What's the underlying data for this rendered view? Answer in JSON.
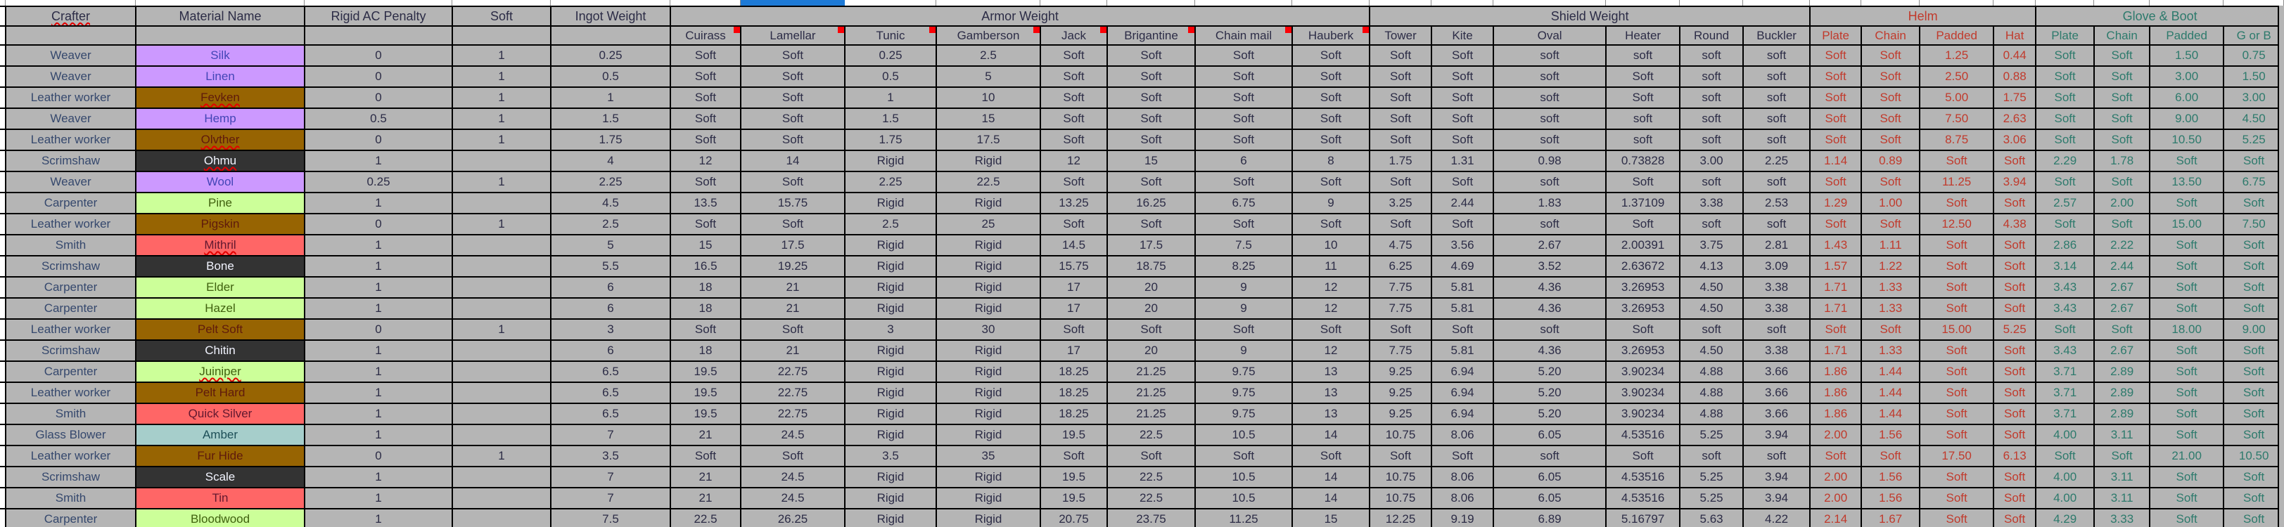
{
  "sheet": {
    "header_row1": [
      {
        "label": "Crafter",
        "span": 1,
        "misspelled": true
      },
      {
        "label": "Material Name",
        "span": 1
      },
      {
        "label": "Rigid AC Penalty",
        "span": 1
      },
      {
        "label": "Soft",
        "span": 1
      },
      {
        "label": "Ingot Weight",
        "span": 1
      },
      {
        "label": "Armor Weight",
        "span": 8
      },
      {
        "label": "Shield Weight",
        "span": 6
      },
      {
        "label": "Helm",
        "span": 4,
        "tone": "helm"
      },
      {
        "label": "Glove & Boot",
        "span": 4,
        "tone": "glove"
      }
    ],
    "header_row2": [
      {
        "label": ""
      },
      {
        "label": ""
      },
      {
        "label": ""
      },
      {
        "label": ""
      },
      {
        "label": ""
      },
      {
        "label": "Cuirass",
        "comment": true
      },
      {
        "label": "Lamellar",
        "comment": true
      },
      {
        "label": "Tunic",
        "comment": true
      },
      {
        "label": "Gamberson",
        "comment": true
      },
      {
        "label": "Jack",
        "comment": true
      },
      {
        "label": "Brigantine",
        "comment": true
      },
      {
        "label": "Chain mail",
        "comment": true
      },
      {
        "label": "Hauberk",
        "comment": true
      },
      {
        "label": "Tower"
      },
      {
        "label": "Kite"
      },
      {
        "label": "Oval"
      },
      {
        "label": "Heater"
      },
      {
        "label": "Round"
      },
      {
        "label": "Buckler"
      },
      {
        "label": "Plate",
        "tone": "helm"
      },
      {
        "label": "Chain",
        "tone": "helm"
      },
      {
        "label": "Padded",
        "tone": "helm"
      },
      {
        "label": "Hat",
        "tone": "helm"
      },
      {
        "label": "Plate",
        "tone": "glove"
      },
      {
        "label": "Chain",
        "tone": "glove"
      },
      {
        "label": "Padded",
        "tone": "glove"
      },
      {
        "label": "G or B",
        "tone": "glove"
      }
    ],
    "rows": [
      {
        "crafter": "Weaver",
        "material": "Silk",
        "material_style": "purple",
        "misspelled": false,
        "cells": [
          "0",
          "1",
          "0.25",
          "Soft",
          "Soft",
          "0.25",
          "2.5",
          "Soft",
          "Soft",
          "Soft",
          "Soft",
          "Soft",
          "Soft",
          "soft",
          "soft",
          "soft",
          "soft",
          "Soft",
          "Soft",
          "1.25",
          "0.44",
          "Soft",
          "Soft",
          "1.50",
          "0.75"
        ]
      },
      {
        "crafter": "Weaver",
        "material": "Linen",
        "material_style": "purple",
        "misspelled": false,
        "cells": [
          "0",
          "1",
          "0.5",
          "Soft",
          "Soft",
          "0.5",
          "5",
          "Soft",
          "Soft",
          "Soft",
          "Soft",
          "Soft",
          "Soft",
          "soft",
          "Soft",
          "soft",
          "soft",
          "Soft",
          "Soft",
          "2.50",
          "0.88",
          "Soft",
          "Soft",
          "3.00",
          "1.50"
        ]
      },
      {
        "crafter": "Leather worker",
        "material": "Fevken",
        "material_style": "brown",
        "misspelled": true,
        "cells": [
          "0",
          "1",
          "1",
          "Soft",
          "Soft",
          "1",
          "10",
          "Soft",
          "Soft",
          "Soft",
          "Soft",
          "Soft",
          "Soft",
          "soft",
          "Soft",
          "soft",
          "soft",
          "Soft",
          "Soft",
          "5.00",
          "1.75",
          "Soft",
          "Soft",
          "6.00",
          "3.00"
        ]
      },
      {
        "crafter": "Weaver",
        "material": "Hemp",
        "material_style": "purple",
        "misspelled": false,
        "cells": [
          "0.5",
          "1",
          "1.5",
          "Soft",
          "Soft",
          "1.5",
          "15",
          "Soft",
          "Soft",
          "Soft",
          "Soft",
          "Soft",
          "Soft",
          "soft",
          "soft",
          "soft",
          "soft",
          "Soft",
          "Soft",
          "7.50",
          "2.63",
          "Soft",
          "Soft",
          "9.00",
          "4.50"
        ]
      },
      {
        "crafter": "Leather worker",
        "material": "Olvther",
        "material_style": "brown",
        "misspelled": true,
        "cells": [
          "0",
          "1",
          "1.75",
          "Soft",
          "Soft",
          "1.75",
          "17.5",
          "Soft",
          "Soft",
          "Soft",
          "Soft",
          "Soft",
          "Soft",
          "soft",
          "soft",
          "soft",
          "soft",
          "Soft",
          "Soft",
          "8.75",
          "3.06",
          "Soft",
          "Soft",
          "10.50",
          "5.25"
        ]
      },
      {
        "crafter": "Scrimshaw",
        "material": "Ohmu",
        "material_style": "dark",
        "misspelled": true,
        "cells": [
          "1",
          "",
          "4",
          "12",
          "14",
          "Rigid",
          "Rigid",
          "12",
          "15",
          "6",
          "8",
          "1.75",
          "1.31",
          "0.98",
          "0.73828",
          "3.00",
          "2.25",
          "1.14",
          "0.89",
          "Soft",
          "Soft",
          "2.29",
          "1.78",
          "Soft",
          "Soft"
        ]
      },
      {
        "crafter": "Weaver",
        "material": "Wool",
        "material_style": "purple",
        "misspelled": false,
        "cells": [
          "0.25",
          "1",
          "2.25",
          "Soft",
          "Soft",
          "2.25",
          "22.5",
          "Soft",
          "Soft",
          "Soft",
          "Soft",
          "Soft",
          "Soft",
          "soft",
          "Soft",
          "soft",
          "soft",
          "Soft",
          "Soft",
          "11.25",
          "3.94",
          "Soft",
          "Soft",
          "13.50",
          "6.75"
        ]
      },
      {
        "crafter": "Carpenter",
        "material": "Pine",
        "material_style": "green",
        "misspelled": false,
        "cells": [
          "1",
          "",
          "4.5",
          "13.5",
          "15.75",
          "Rigid",
          "Rigid",
          "13.25",
          "16.25",
          "6.75",
          "9",
          "3.25",
          "2.44",
          "1.83",
          "1.37109",
          "3.38",
          "2.53",
          "1.29",
          "1.00",
          "Soft",
          "Soft",
          "2.57",
          "2.00",
          "Soft",
          "Soft"
        ]
      },
      {
        "crafter": "Leather worker",
        "material": "Pigskin",
        "material_style": "brown",
        "misspelled": false,
        "cells": [
          "0",
          "1",
          "2.5",
          "Soft",
          "Soft",
          "2.5",
          "25",
          "Soft",
          "Soft",
          "Soft",
          "Soft",
          "Soft",
          "Soft",
          "soft",
          "Soft",
          "soft",
          "soft",
          "Soft",
          "Soft",
          "12.50",
          "4.38",
          "Soft",
          "Soft",
          "15.00",
          "7.50"
        ]
      },
      {
        "crafter": "Smith",
        "material": "Mithril",
        "material_style": "red",
        "misspelled": true,
        "cells": [
          "1",
          "",
          "5",
          "15",
          "17.5",
          "Rigid",
          "Rigid",
          "14.5",
          "17.5",
          "7.5",
          "10",
          "4.75",
          "3.56",
          "2.67",
          "2.00391",
          "3.75",
          "2.81",
          "1.43",
          "1.11",
          "Soft",
          "Soft",
          "2.86",
          "2.22",
          "Soft",
          "Soft"
        ]
      },
      {
        "crafter": "Scrimshaw",
        "material": "Bone",
        "material_style": "dark",
        "misspelled": false,
        "cells": [
          "1",
          "",
          "5.5",
          "16.5",
          "19.25",
          "Rigid",
          "Rigid",
          "15.75",
          "18.75",
          "8.25",
          "11",
          "6.25",
          "4.69",
          "3.52",
          "2.63672",
          "4.13",
          "3.09",
          "1.57",
          "1.22",
          "Soft",
          "Soft",
          "3.14",
          "2.44",
          "Soft",
          "Soft"
        ]
      },
      {
        "crafter": "Carpenter",
        "material": "Elder",
        "material_style": "green",
        "misspelled": false,
        "cells": [
          "1",
          "",
          "6",
          "18",
          "21",
          "Rigid",
          "Rigid",
          "17",
          "20",
          "9",
          "12",
          "7.75",
          "5.81",
          "4.36",
          "3.26953",
          "4.50",
          "3.38",
          "1.71",
          "1.33",
          "Soft",
          "Soft",
          "3.43",
          "2.67",
          "Soft",
          "Soft"
        ]
      },
      {
        "crafter": "Carpenter",
        "material": "Hazel",
        "material_style": "green",
        "misspelled": false,
        "cells": [
          "1",
          "",
          "6",
          "18",
          "21",
          "Rigid",
          "Rigid",
          "17",
          "20",
          "9",
          "12",
          "7.75",
          "5.81",
          "4.36",
          "3.26953",
          "4.50",
          "3.38",
          "1.71",
          "1.33",
          "Soft",
          "Soft",
          "3.43",
          "2.67",
          "Soft",
          "Soft"
        ]
      },
      {
        "crafter": "Leather worker",
        "material": "Pelt Soft",
        "material_style": "brown",
        "misspelled": false,
        "cells": [
          "0",
          "1",
          "3",
          "Soft",
          "Soft",
          "3",
          "30",
          "Soft",
          "Soft",
          "Soft",
          "Soft",
          "Soft",
          "Soft",
          "soft",
          "Soft",
          "soft",
          "soft",
          "Soft",
          "Soft",
          "15.00",
          "5.25",
          "Soft",
          "Soft",
          "18.00",
          "9.00"
        ]
      },
      {
        "crafter": "Scrimshaw",
        "material": "Chitin",
        "material_style": "dark",
        "misspelled": false,
        "cells": [
          "1",
          "",
          "6",
          "18",
          "21",
          "Rigid",
          "Rigid",
          "17",
          "20",
          "9",
          "12",
          "7.75",
          "5.81",
          "4.36",
          "3.26953",
          "4.50",
          "3.38",
          "1.71",
          "1.33",
          "Soft",
          "Soft",
          "3.43",
          "2.67",
          "Soft",
          "Soft"
        ]
      },
      {
        "crafter": "Carpenter",
        "material": "Juiniper",
        "material_style": "green",
        "misspelled": true,
        "cells": [
          "1",
          "",
          "6.5",
          "19.5",
          "22.75",
          "Rigid",
          "Rigid",
          "18.25",
          "21.25",
          "9.75",
          "13",
          "9.25",
          "6.94",
          "5.20",
          "3.90234",
          "4.88",
          "3.66",
          "1.86",
          "1.44",
          "Soft",
          "Soft",
          "3.71",
          "2.89",
          "Soft",
          "Soft"
        ]
      },
      {
        "crafter": "Leather worker",
        "material": "Pelt Hard",
        "material_style": "brown",
        "misspelled": false,
        "cells": [
          "1",
          "",
          "6.5",
          "19.5",
          "22.75",
          "Rigid",
          "Rigid",
          "18.25",
          "21.25",
          "9.75",
          "13",
          "9.25",
          "6.94",
          "5.20",
          "3.90234",
          "4.88",
          "3.66",
          "1.86",
          "1.44",
          "Soft",
          "Soft",
          "3.71",
          "2.89",
          "Soft",
          "Soft"
        ]
      },
      {
        "crafter": "Smith",
        "material": "Quick Silver",
        "material_style": "red",
        "misspelled": false,
        "cells": [
          "1",
          "",
          "6.5",
          "19.5",
          "22.75",
          "Rigid",
          "Rigid",
          "18.25",
          "21.25",
          "9.75",
          "13",
          "9.25",
          "6.94",
          "5.20",
          "3.90234",
          "4.88",
          "3.66",
          "1.86",
          "1.44",
          "Soft",
          "Soft",
          "3.71",
          "2.89",
          "Soft",
          "Soft"
        ]
      },
      {
        "crafter": "Glass Blower",
        "material": "Amber",
        "material_style": "cyan",
        "misspelled": false,
        "cells": [
          "1",
          "",
          "7",
          "21",
          "24.5",
          "Rigid",
          "Rigid",
          "19.5",
          "22.5",
          "10.5",
          "14",
          "10.75",
          "8.06",
          "6.05",
          "4.53516",
          "5.25",
          "3.94",
          "2.00",
          "1.56",
          "Soft",
          "Soft",
          "4.00",
          "3.11",
          "Soft",
          "Soft"
        ]
      },
      {
        "crafter": "Leather worker",
        "material": "Fur Hide",
        "material_style": "brown",
        "misspelled": false,
        "cells": [
          "0",
          "1",
          "3.5",
          "Soft",
          "Soft",
          "3.5",
          "35",
          "Soft",
          "Soft",
          "Soft",
          "Soft",
          "Soft",
          "Soft",
          "soft",
          "Soft",
          "soft",
          "soft",
          "Soft",
          "Soft",
          "17.50",
          "6.13",
          "Soft",
          "Soft",
          "21.00",
          "10.50"
        ]
      },
      {
        "crafter": "Scrimshaw",
        "material": "Scale",
        "material_style": "dark",
        "misspelled": false,
        "cells": [
          "1",
          "",
          "7",
          "21",
          "24.5",
          "Rigid",
          "Rigid",
          "19.5",
          "22.5",
          "10.5",
          "14",
          "10.75",
          "8.06",
          "6.05",
          "4.53516",
          "5.25",
          "3.94",
          "2.00",
          "1.56",
          "Soft",
          "Soft",
          "4.00",
          "3.11",
          "Soft",
          "Soft"
        ]
      },
      {
        "crafter": "Smith",
        "material": "Tin",
        "material_style": "red",
        "misspelled": false,
        "cells": [
          "1",
          "",
          "7",
          "21",
          "24.5",
          "Rigid",
          "Rigid",
          "19.5",
          "22.5",
          "10.5",
          "14",
          "10.75",
          "8.06",
          "6.05",
          "4.53516",
          "5.25",
          "3.94",
          "2.00",
          "1.56",
          "Soft",
          "Soft",
          "4.00",
          "3.11",
          "Soft",
          "Soft"
        ]
      },
      {
        "crafter": "Carpenter",
        "material": "Bloodwood",
        "material_style": "green",
        "misspelled": false,
        "cells": [
          "1",
          "",
          "7.5",
          "22.5",
          "26.25",
          "Rigid",
          "Rigid",
          "20.75",
          "23.75",
          "11.25",
          "15",
          "12.25",
          "9.19",
          "6.89",
          "5.16797",
          "5.63",
          "4.22",
          "2.14",
          "1.67",
          "Soft",
          "Soft",
          "4.29",
          "3.33",
          "Soft",
          "Soft"
        ]
      }
    ],
    "material_colors": {
      "purple": {
        "bg": "#cc99ff",
        "text": "#4345b6"
      },
      "brown": {
        "bg": "#976402",
        "text": "#5f1a0c"
      },
      "dark": {
        "bg": "#333333",
        "text": "#f2f4ff"
      },
      "green": {
        "bg": "#ccff99",
        "text": "#40610f"
      },
      "red": {
        "bg": "#ff6666",
        "text": "#61182f"
      },
      "cyan": {
        "bg": "#a6cecb",
        "text": "#1d4f57"
      }
    },
    "colors": {
      "cell_bg": "#b5b5b5",
      "grid": "#000000",
      "ink": "#2c2c46",
      "crafter_ink": "#35486d",
      "helm_text": "#c13a2c",
      "glove_text": "#2d7a6c",
      "selected_column": "#1e7ad6",
      "comment_marker": "#fb0207",
      "squiggle": "#e40000",
      "strip_bg": "#ffffff",
      "strip_sep": "#8c8c8c"
    },
    "selected_column_label": "Lamellar"
  }
}
